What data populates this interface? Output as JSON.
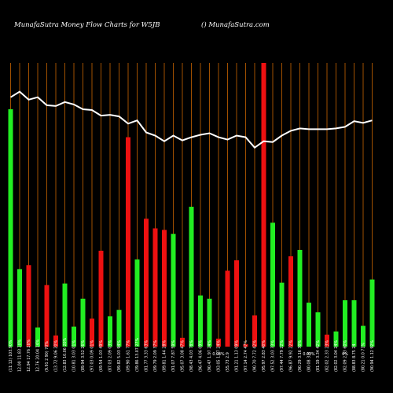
{
  "header": {
    "title_left": "MunafaSutra  Money Flow  Charts for W5JB",
    "title_right": "() MunafaSutra.com"
  },
  "colors": {
    "background": "#000000",
    "up": "#22ee22",
    "down": "#ee1111",
    "grid": "#b35a00",
    "line": "#ffffff"
  },
  "chart_data": {
    "type": "bar",
    "title": "MunafaSutra  Money Flow  Charts for W5JB",
    "grid": true,
    "ylim": [
      0,
      355
    ],
    "price_ylim": [
      0,
      355
    ],
    "categories": [
      "(11:12) 103.90%",
      "12.00  11.83 20%",
      "12.94  17.76 20%",
      "12.76  20.04 14%",
      "(9.91  2 90) 70%",
      "(13.72  9.06 20%",
      "(12.83  10.06 20%",
      "(10.81  3.03 01%",
      "(89.94  3.52 26%",
      "(97.03  0.09 01%",
      "(69.54  1.03 49%",
      "(87.03  2.09 03%",
      "(99.82  5.03 94%",
      "(09.90  1.61 77%",
      "(39.86  13.07 27%",
      "(81.77  3.33 63%",
      "(09.79  2.09 37%",
      "(89.81  1.44 28%",
      "(91.07  7.87 59%",
      "(95.07 3.08 47%",
      "(98.43  4.03 78%",
      "(96.47  4.06 09%",
      "(90.47  1.97 24%",
      "(93.05  1.67 24%",
      "(55.73  2.9",
      "(91.21  1.13 09%",
      "(97.14  2.74 47%",
      "(90.70  7.72 42%",
      "(95.97  2.83 40%",
      "(97.52  3.03 33%",
      "(97.44  7.79 22%",
      "(96.87  9.92 22%",
      "(90.29  3.16 30%",
      "(80.08  3.8",
      "(81.19  3.34 42%",
      "(82.02  2.33 23%",
      "(82.02  3.04 24%",
      "(82.09  2.33 60%",
      "(88.83  8.75 24",
      "(80.21  0.0 71%",
      "(90.94  1.12 92%"
    ],
    "annotations": [
      {
        "index": 23,
        "text": "0.04%"
      },
      {
        "index": 33,
        "text": "0.03%"
      },
      {
        "index": 37,
        "text": "0%"
      }
    ],
    "series": [
      {
        "type": "bar",
        "values": [
          297,
          97,
          102,
          24,
          77,
          14,
          79,
          25,
          60,
          35,
          120,
          38,
          46,
          262,
          109,
          160,
          148,
          146,
          141,
          11,
          175,
          64,
          60,
          10,
          95,
          108,
          3,
          39,
          360,
          155,
          80,
          113,
          121,
          55,
          43,
          15,
          19,
          58,
          58,
          26,
          84
        ],
        "directions": [
          "up",
          "up",
          "down",
          "up",
          "down",
          "down",
          "up",
          "up",
          "up",
          "down",
          "down",
          "up",
          "up",
          "down",
          "up",
          "down",
          "down",
          "down",
          "up",
          "down",
          "up",
          "up",
          "up",
          "down",
          "down",
          "down",
          "down",
          "down",
          "down",
          "up",
          "up",
          "down",
          "up",
          "up",
          "up",
          "down",
          "up",
          "up",
          "up",
          "up",
          "up"
        ]
      },
      {
        "type": "line",
        "values": [
          312,
          319,
          309,
          312,
          302,
          301,
          306,
          303,
          297,
          296,
          289,
          290,
          288,
          279,
          283,
          268,
          264,
          257,
          264,
          258,
          262,
          265,
          267,
          262,
          259,
          264,
          262,
          249,
          257,
          256,
          264,
          270,
          273,
          272,
          272,
          272,
          273,
          275,
          282,
          280,
          283
        ]
      }
    ]
  }
}
